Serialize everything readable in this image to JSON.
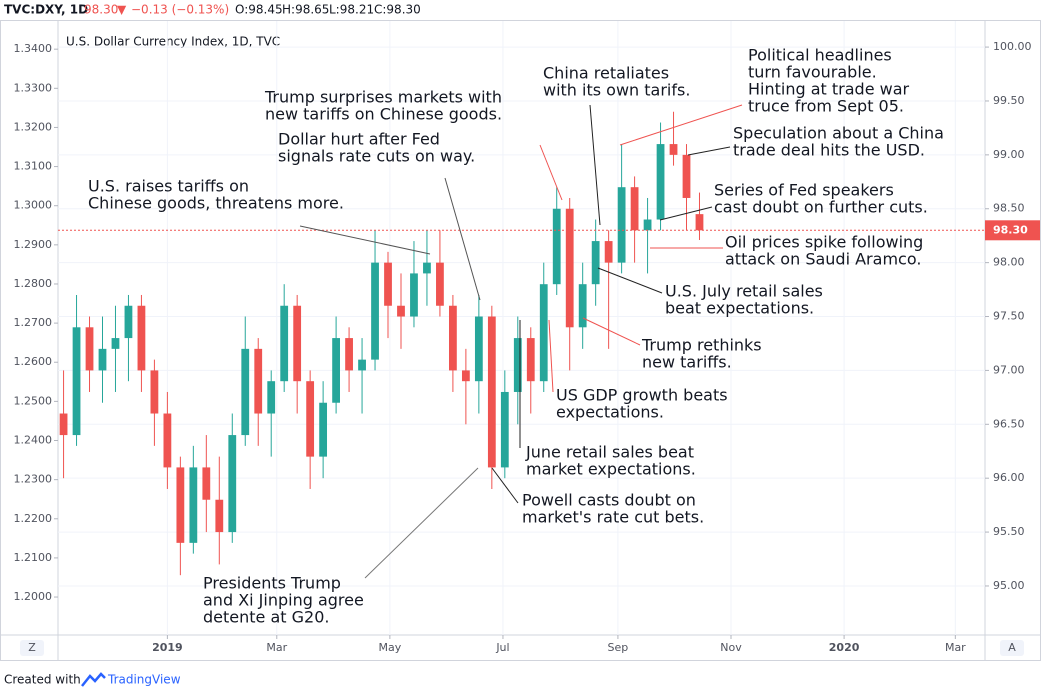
{
  "header": {
    "symbol": "TVC:DXY, 1D",
    "last": "98.30",
    "arrow": "▼",
    "change": "−0.13 (−0.13%)",
    "open": "O:98.45",
    "high": "H:98.65",
    "low": "L:98.21",
    "close": "C:98.30"
  },
  "ui": {
    "scale_left": "Z",
    "scale_right": "A",
    "footer_prefix": "Created with",
    "footer_brand": "TradingView"
  },
  "chart_data": {
    "type": "candlestick",
    "title": "U.S. Dollar Currency Index, 1D, TVC",
    "up_color": "#26a69a",
    "down_color": "#ef5350",
    "grid": true,
    "x": [
      -56,
      -49,
      -42,
      -35,
      -28,
      -21,
      -14,
      -7,
      0,
      7,
      14,
      21,
      28,
      35,
      42,
      49,
      56,
      63,
      70,
      77,
      84,
      91,
      98,
      105,
      112,
      119,
      126,
      133,
      140,
      147,
      154,
      161,
      168,
      175,
      182,
      189,
      196,
      203,
      210,
      217,
      224,
      231,
      238,
      245,
      252,
      259,
      266,
      273,
      280,
      287
    ],
    "open": [
      96.6,
      96.4,
      97.4,
      97.0,
      97.2,
      97.3,
      97.6,
      97.0,
      96.6,
      96.1,
      95.4,
      96.1,
      95.8,
      95.5,
      96.4,
      97.2,
      96.6,
      96.9,
      97.6,
      96.9,
      96.2,
      96.7,
      97.3,
      97.0,
      97.1,
      98.0,
      97.6,
      97.5,
      97.9,
      98.0,
      97.6,
      97.0,
      96.9,
      97.5,
      96.1,
      96.8,
      97.3,
      96.9,
      97.8,
      98.5,
      97.4,
      97.8,
      98.2,
      98.0,
      98.7,
      98.3,
      98.4,
      99.1,
      99.0,
      98.45
    ],
    "high": [
      97.0,
      97.7,
      97.5,
      97.5,
      97.6,
      97.7,
      97.7,
      97.1,
      96.8,
      96.2,
      96.3,
      96.4,
      96.2,
      96.6,
      97.5,
      97.3,
      97.0,
      97.8,
      97.7,
      97.0,
      96.9,
      97.5,
      97.4,
      97.3,
      98.3,
      98.1,
      97.9,
      98.2,
      98.3,
      98.3,
      97.7,
      97.2,
      97.7,
      97.6,
      97.0,
      97.5,
      97.4,
      98.0,
      98.7,
      98.6,
      98.0,
      98.4,
      98.3,
      99.1,
      98.8,
      98.6,
      99.3,
      99.4,
      99.1,
      98.65
    ],
    "low": [
      96.0,
      96.3,
      96.8,
      96.7,
      96.8,
      96.9,
      96.8,
      96.3,
      95.9,
      95.1,
      95.3,
      95.5,
      95.2,
      95.4,
      96.3,
      96.3,
      96.2,
      96.8,
      96.6,
      95.9,
      96.0,
      96.6,
      96.8,
      96.6,
      97.0,
      97.3,
      97.2,
      97.4,
      97.6,
      97.5,
      96.8,
      96.5,
      96.6,
      95.9,
      96.0,
      96.5,
      96.6,
      96.8,
      97.7,
      97.0,
      97.2,
      97.6,
      97.2,
      97.9,
      98.0,
      97.9,
      98.3,
      98.9,
      98.3,
      98.21
    ],
    "close": [
      96.4,
      97.4,
      97.0,
      97.2,
      97.3,
      97.6,
      97.0,
      96.6,
      96.1,
      95.4,
      96.1,
      95.8,
      95.5,
      96.4,
      97.2,
      96.6,
      96.9,
      97.6,
      96.9,
      96.2,
      96.7,
      97.3,
      97.0,
      97.1,
      98.0,
      97.6,
      97.5,
      97.9,
      98.0,
      97.6,
      97.0,
      96.9,
      97.5,
      96.1,
      96.8,
      97.3,
      96.9,
      97.8,
      98.5,
      97.4,
      97.8,
      98.2,
      98.0,
      98.7,
      98.3,
      98.4,
      99.1,
      99.0,
      98.6,
      98.3
    ],
    "xlim": [
      -59,
      441
    ],
    "xticks": [
      {
        "value": 0,
        "label": "2019"
      },
      {
        "value": 59,
        "label": "Mar"
      },
      {
        "value": 120,
        "label": "May"
      },
      {
        "value": 181,
        "label": "Jul"
      },
      {
        "value": 243,
        "label": "Sep"
      },
      {
        "value": 304,
        "label": "Nov"
      },
      {
        "value": 365,
        "label": "2020"
      },
      {
        "value": 425,
        "label": "Mar"
      }
    ],
    "ylim": [
      94.545,
      100.242
    ],
    "yticks": [
      {
        "value": 95,
        "label": "95.00"
      },
      {
        "value": 95.5,
        "label": "95.50"
      },
      {
        "value": 96,
        "label": "96.00"
      },
      {
        "value": 96.5,
        "label": "96.50"
      },
      {
        "value": 97,
        "label": "97.00"
      },
      {
        "value": 97.5,
        "label": "97.50"
      },
      {
        "value": 98,
        "label": "98.00"
      },
      {
        "value": 98.5,
        "label": "98.50"
      },
      {
        "value": 99,
        "label": "99.00"
      },
      {
        "value": 99.5,
        "label": "99.50"
      },
      {
        "value": 100,
        "label": "100.00"
      }
    ],
    "y2lim": [
      1.1903,
      1.3472
    ],
    "y2ticks": [
      {
        "value": 1.2,
        "label": "1.2000"
      },
      {
        "value": 1.21,
        "label": "1.2100"
      },
      {
        "value": 1.22,
        "label": "1.2200"
      },
      {
        "value": 1.23,
        "label": "1.2300"
      },
      {
        "value": 1.24,
        "label": "1.2400"
      },
      {
        "value": 1.25,
        "label": "1.2500"
      },
      {
        "value": 1.26,
        "label": "1.2600"
      },
      {
        "value": 1.27,
        "label": "1.2700"
      },
      {
        "value": 1.28,
        "label": "1.2800"
      },
      {
        "value": 1.29,
        "label": "1.2900"
      },
      {
        "value": 1.3,
        "label": "1.3000"
      },
      {
        "value": 1.31,
        "label": "1.3100"
      },
      {
        "value": 1.32,
        "label": "1.3200"
      },
      {
        "value": 1.33,
        "label": "1.3300"
      },
      {
        "value": 1.34,
        "label": "1.3400"
      }
    ],
    "last_price": {
      "value": 98.3,
      "label": "98.30"
    },
    "annotations": [
      {
        "lines": [
          "U.S. raises tariffs on",
          "Chinese goods, threatens more."
        ]
      },
      {
        "lines": [
          "Dollar hurt after Fed",
          "signals rate cuts on way."
        ]
      },
      {
        "lines": [
          "Trump surprises markets with",
          "new tariffs on Chinese goods."
        ]
      },
      {
        "lines": [
          "China retaliates",
          "with its own tarifs."
        ]
      },
      {
        "lines": [
          "Political headlines",
          "turn favourable.",
          "Hinting at trade war",
          "truce from Sept 05."
        ]
      },
      {
        "lines": [
          "Speculation about a China",
          "trade deal hits the USD."
        ]
      },
      {
        "lines": [
          "Series of Fed speakers",
          "cast doubt on further cuts."
        ]
      },
      {
        "lines": [
          "Oil prices spike following",
          "attack on Saudi Aramco."
        ]
      },
      {
        "lines": [
          "U.S. July retail sales",
          "beat expectations."
        ]
      },
      {
        "lines": [
          "Trump rethinks",
          "new tariffs."
        ]
      },
      {
        "lines": [
          "US GDP growth beats",
          "expectations."
        ]
      },
      {
        "lines": [
          "June retail sales beat",
          "market expectations."
        ]
      },
      {
        "lines": [
          "Powell casts doubt on",
          "market's rate cut bets."
        ]
      },
      {
        "lines": [
          "Presidents Trump",
          "and Xi Jinping agree",
          "detente at G20."
        ]
      }
    ]
  }
}
